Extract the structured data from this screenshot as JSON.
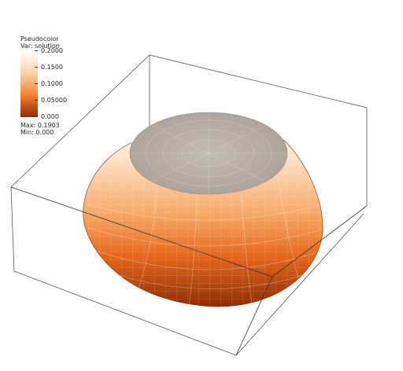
{
  "legend": {
    "title": "Pseudocolor",
    "variable": "Var: solution",
    "ticks": [
      "0.2000",
      "0.1500",
      "0.1000",
      "0.05000",
      "0.000"
    ],
    "max_label": "Max:  0.1903",
    "min_label": "Min:  0.000"
  },
  "colormap": {
    "low": "#8c2d04",
    "mid": "#f28a3a",
    "high": "#fff4e8",
    "cap": "#b9b2aa"
  }
}
